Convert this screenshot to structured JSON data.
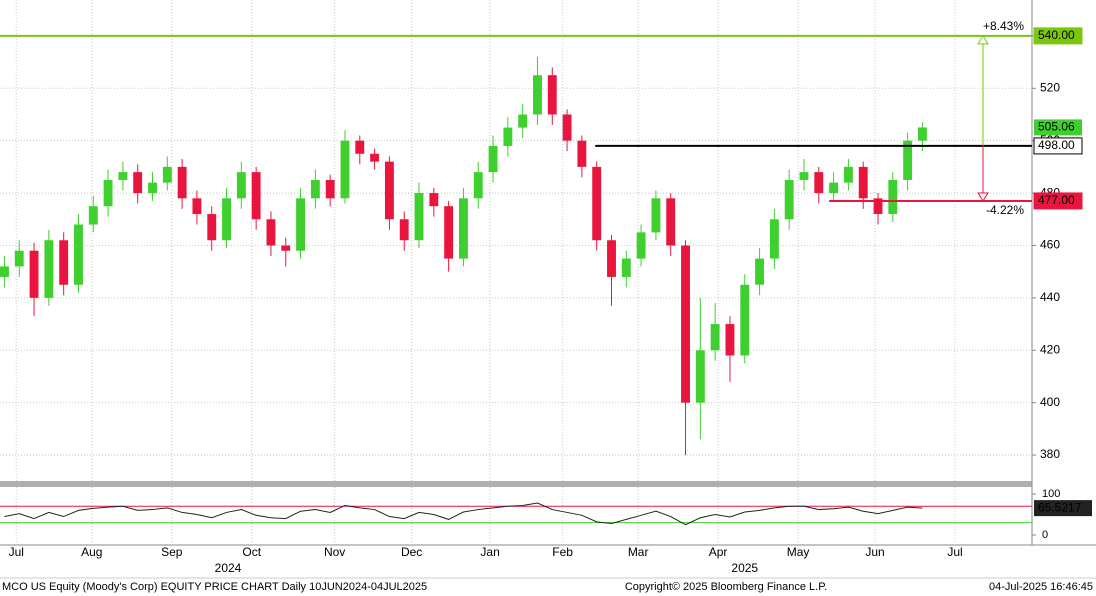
{
  "chart_data": {
    "type": "candlestick",
    "footer_left": "MCO US Equity (Moody's Corp) EQUITY PRICE CHART  Daily 10JUN2024-04JUL2025",
    "footer_center": "Copyright© 2025 Bloomberg Finance L.P.",
    "footer_right": "04-Jul-2025 16:46:45",
    "up_color": "#3fcf2f",
    "down_color": "#e8163f",
    "open": [
      448,
      452,
      458,
      440,
      462,
      445,
      468,
      475,
      485,
      488,
      480,
      484,
      490,
      478,
      472,
      462,
      478,
      488,
      470,
      460,
      458,
      478,
      485,
      478,
      500,
      495,
      492,
      470,
      462,
      480,
      475,
      455,
      478,
      488,
      498,
      505,
      510,
      525,
      510,
      500,
      490,
      462,
      448,
      455,
      465,
      478,
      460,
      400,
      420,
      430,
      418,
      445,
      455,
      470,
      485,
      488,
      480,
      484,
      490,
      478,
      472,
      485,
      500
    ],
    "high": [
      456,
      462,
      461,
      466,
      465,
      472,
      479,
      489,
      492,
      491,
      488,
      494,
      493,
      481,
      475,
      482,
      492,
      490,
      473,
      463,
      482,
      489,
      487,
      504,
      502,
      497,
      494,
      473,
      484,
      482,
      477,
      482,
      492,
      502,
      509,
      514,
      532,
      528,
      512,
      502,
      492,
      464,
      458,
      468,
      481,
      480,
      462,
      440,
      438,
      433,
      449,
      459,
      474,
      489,
      493,
      490,
      488,
      493,
      492,
      480,
      488,
      503,
      507
    ],
    "low": [
      444,
      448,
      433,
      437,
      441,
      442,
      465,
      471,
      481,
      476,
      477,
      481,
      474,
      468,
      458,
      459,
      474,
      466,
      456,
      452,
      455,
      474,
      475,
      476,
      491,
      489,
      466,
      458,
      459,
      471,
      450,
      452,
      474,
      484,
      494,
      501,
      506,
      506,
      496,
      486,
      458,
      437,
      444,
      452,
      462,
      456,
      380,
      386,
      416,
      408,
      415,
      441,
      451,
      466,
      481,
      476,
      477,
      481,
      474,
      468,
      469,
      481,
      496
    ],
    "close": [
      452,
      458,
      440,
      462,
      445,
      468,
      475,
      485,
      488,
      480,
      484,
      490,
      478,
      472,
      462,
      478,
      488,
      470,
      460,
      458,
      478,
      485,
      478,
      500,
      495,
      492,
      470,
      462,
      480,
      475,
      455,
      478,
      488,
      498,
      505,
      510,
      525,
      510,
      500,
      490,
      462,
      448,
      455,
      465,
      478,
      460,
      400,
      420,
      430,
      418,
      445,
      455,
      470,
      485,
      488,
      480,
      484,
      490,
      478,
      472,
      485,
      500,
      505.06
    ],
    "xlim": [
      -0.3,
      69.4
    ],
    "xticks": [
      {
        "value": 0.8,
        "label": "Jul"
      },
      {
        "value": 5.9,
        "label": "Aug"
      },
      {
        "value": 11.3,
        "label": "Sep"
      },
      {
        "value": 16.7,
        "label": "Oct"
      },
      {
        "value": 22.3,
        "label": "Nov"
      },
      {
        "value": 27.5,
        "label": "Dec"
      },
      {
        "value": 32.8,
        "label": "Jan"
      },
      {
        "value": 37.7,
        "label": "Feb"
      },
      {
        "value": 42.8,
        "label": "Mar"
      },
      {
        "value": 48.2,
        "label": "Apr"
      },
      {
        "value": 53.6,
        "label": "May"
      },
      {
        "value": 58.8,
        "label": "Jun"
      },
      {
        "value": 64.2,
        "label": "Jul"
      }
    ],
    "years": [
      {
        "value": 15.1,
        "label": "2024"
      },
      {
        "value": 50.0,
        "label": "2025"
      }
    ],
    "ylim": [
      370.1,
      553.7
    ],
    "yticks": [
      380,
      400,
      420,
      440,
      460,
      480,
      500,
      520,
      540
    ],
    "grid": true,
    "levels": [
      {
        "value": 540,
        "label": "540.00",
        "color": "#7ac70c",
        "start": -0.3,
        "change": "+8.43%"
      },
      {
        "value": 498,
        "label": "498.00",
        "color": "#000000",
        "start": 39.9
      },
      {
        "value": 477,
        "label": "477.00",
        "color": "#e8163f",
        "start": 55.7,
        "change": "-4.22%"
      }
    ],
    "rsi": {
      "values": [
        45,
        52,
        40,
        55,
        45,
        60,
        65,
        68,
        70,
        60,
        62,
        66,
        55,
        50,
        42,
        55,
        62,
        48,
        42,
        40,
        58,
        62,
        55,
        72,
        66,
        62,
        45,
        40,
        55,
        50,
        38,
        56,
        62,
        66,
        70,
        72,
        78,
        62,
        55,
        48,
        32,
        28,
        38,
        48,
        58,
        45,
        25,
        42,
        50,
        44,
        56,
        60,
        66,
        70,
        70,
        62,
        64,
        68,
        58,
        52,
        60,
        68,
        65.5217
      ],
      "ylim": [
        -24.4,
        117
      ],
      "yticks": [
        0,
        100
      ],
      "levels": [
        {
          "value": 70,
          "color": "#e8163f"
        },
        {
          "value": 30,
          "color": "#3fcf2f"
        }
      ],
      "color": "#222222"
    }
  }
}
